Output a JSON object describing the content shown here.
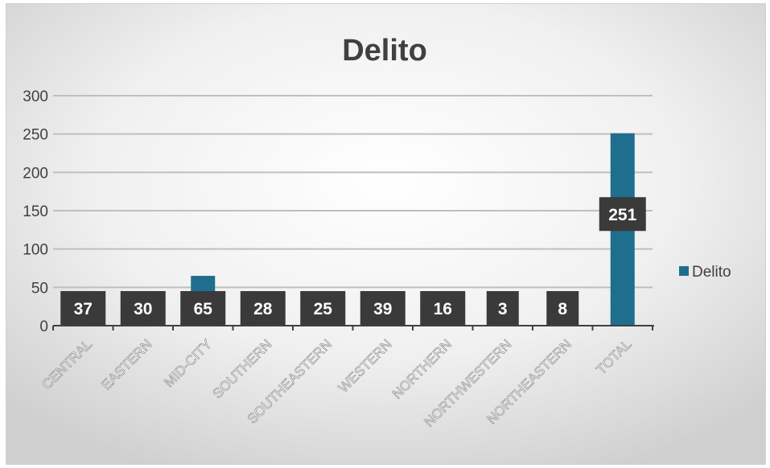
{
  "chart_data": {
    "type": "bar",
    "title": "Delito",
    "categories": [
      "CENTRAL",
      "EASTERN",
      "MID-CITY",
      "SOUTHERN",
      "SOUTHEASTERN",
      "WESTERN",
      "NORTHERN",
      "NORTHWESTERN",
      "NORTHEASTERN",
      "TOTAL"
    ],
    "series": [
      {
        "name": "Delito",
        "values": [
          37,
          30,
          65,
          28,
          25,
          39,
          16,
          3,
          8,
          251
        ]
      }
    ],
    "ylim": [
      0,
      300
    ],
    "yticks": [
      0,
      50,
      100,
      150,
      200,
      250,
      300
    ],
    "xlabel": "",
    "ylabel": "",
    "grid": true,
    "legend": "right",
    "colors": {
      "bar": "#1f6e8e",
      "label_bg": "#3a3a3a",
      "grid": "#bfbfbf"
    }
  }
}
